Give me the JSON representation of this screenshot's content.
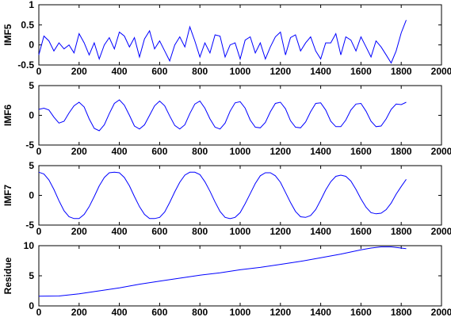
{
  "chart_data": [
    {
      "type": "line",
      "ylabel": "IMF5",
      "xlim": [
        0,
        2000
      ],
      "ylim": [
        -0.5,
        1
      ],
      "xticks": [
        0,
        200,
        400,
        600,
        800,
        1000,
        1200,
        1400,
        1600,
        1800,
        2000
      ],
      "yticks": [
        -0.5,
        0,
        0.5,
        1
      ],
      "yticklabels": [
        "-0.5",
        "0",
        "0.5",
        "1"
      ],
      "color": "#0000ff",
      "series": [
        {
          "x": [
            0,
            25,
            50,
            75,
            100,
            125,
            150,
            175,
            200,
            225,
            250,
            275,
            300,
            325,
            350,
            375,
            400,
            425,
            450,
            475,
            500,
            525,
            550,
            575,
            600,
            625,
            650,
            675,
            700,
            725,
            750,
            775,
            800,
            825,
            850,
            875,
            900,
            925,
            950,
            975,
            1000,
            1025,
            1050,
            1075,
            1100,
            1125,
            1150,
            1175,
            1200,
            1225,
            1250,
            1275,
            1300,
            1325,
            1350,
            1375,
            1400,
            1425,
            1450,
            1475,
            1500,
            1525,
            1550,
            1575,
            1600,
            1625,
            1650,
            1675,
            1700,
            1725,
            1750,
            1775,
            1800,
            1825
          ],
          "y": [
            -0.25,
            0.22,
            0.1,
            -0.15,
            0.05,
            -0.1,
            0.0,
            -0.2,
            0.28,
            0.05,
            -0.25,
            0.05,
            -0.35,
            0.0,
            0.18,
            -0.1,
            0.32,
            0.22,
            -0.05,
            0.18,
            -0.3,
            0.15,
            0.35,
            -0.1,
            0.1,
            -0.15,
            -0.4,
            0.0,
            0.2,
            -0.05,
            0.45,
            0.1,
            -0.3,
            0.05,
            -0.2,
            0.25,
            0.22,
            -0.3,
            0.0,
            0.05,
            -0.35,
            0.12,
            0.2,
            -0.2,
            0.05,
            -0.35,
            -0.05,
            0.2,
            0.32,
            -0.25,
            0.18,
            0.25,
            -0.15,
            0.05,
            0.2,
            -0.15,
            -0.35,
            0.05,
            0.05,
            0.28,
            -0.25,
            0.2,
            0.12,
            -0.15,
            0.2,
            -0.05,
            -0.3,
            0.1,
            -0.05,
            -0.25,
            -0.45,
            -0.15,
            0.3,
            0.62
          ]
        }
      ]
    },
    {
      "type": "line",
      "ylabel": "IMF6",
      "xlim": [
        0,
        2000
      ],
      "ylim": [
        -5,
        5
      ],
      "xticks": [
        0,
        200,
        400,
        600,
        800,
        1000,
        1200,
        1400,
        1600,
        1800,
        2000
      ],
      "yticks": [
        -5,
        0,
        5
      ],
      "yticklabels": [
        "-5",
        "0",
        "5"
      ],
      "color": "#0000ff",
      "series": [
        {
          "x": [
            0,
            25,
            50,
            75,
            100,
            125,
            150,
            175,
            200,
            225,
            250,
            275,
            300,
            325,
            350,
            375,
            400,
            425,
            450,
            475,
            500,
            525,
            550,
            575,
            600,
            625,
            650,
            675,
            700,
            725,
            750,
            775,
            800,
            825,
            850,
            875,
            900,
            925,
            950,
            975,
            1000,
            1025,
            1050,
            1075,
            1100,
            1125,
            1150,
            1175,
            1200,
            1225,
            1250,
            1275,
            1300,
            1325,
            1350,
            1375,
            1400,
            1425,
            1450,
            1475,
            1500,
            1525,
            1550,
            1575,
            1600,
            1625,
            1650,
            1675,
            1700,
            1725,
            1750,
            1775,
            1800,
            1825
          ],
          "y": [
            1.0,
            1.2,
            0.9,
            -0.3,
            -1.3,
            -1.0,
            0.4,
            1.6,
            2.2,
            1.4,
            -0.6,
            -2.2,
            -2.6,
            -1.6,
            0.3,
            2.0,
            2.6,
            1.7,
            0.0,
            -1.8,
            -2.3,
            -1.6,
            0.0,
            1.6,
            2.4,
            1.6,
            -0.1,
            -1.7,
            -2.3,
            -1.6,
            0.3,
            1.9,
            2.4,
            1.2,
            -0.6,
            -2.0,
            -2.3,
            -1.3,
            0.7,
            2.1,
            2.3,
            1.2,
            -0.8,
            -2.0,
            -2.1,
            -1.2,
            0.6,
            2.0,
            2.2,
            1.1,
            -0.9,
            -2.0,
            -2.1,
            -1.1,
            0.6,
            2.0,
            2.1,
            0.9,
            -1.0,
            -1.9,
            -1.9,
            -0.8,
            0.9,
            1.9,
            2.0,
            0.7,
            -1.0,
            -1.9,
            -1.8,
            -0.6,
            1.0,
            1.9,
            1.8,
            2.2
          ]
        }
      ]
    },
    {
      "type": "line",
      "ylabel": "IMF7",
      "xlim": [
        0,
        2000
      ],
      "ylim": [
        -5,
        5
      ],
      "xticks": [
        0,
        200,
        400,
        600,
        800,
        1000,
        1200,
        1400,
        1600,
        1800,
        2000
      ],
      "yticks": [
        -5,
        0,
        5
      ],
      "yticklabels": [
        "-5",
        "0",
        "5"
      ],
      "color": "#0000ff",
      "series": [
        {
          "x": [
            0,
            25,
            50,
            75,
            100,
            125,
            150,
            175,
            200,
            225,
            250,
            275,
            300,
            325,
            350,
            375,
            400,
            425,
            450,
            475,
            500,
            525,
            550,
            575,
            600,
            625,
            650,
            675,
            700,
            725,
            750,
            775,
            800,
            825,
            850,
            875,
            900,
            925,
            950,
            975,
            1000,
            1025,
            1050,
            1075,
            1100,
            1125,
            1150,
            1175,
            1200,
            1225,
            1250,
            1275,
            1300,
            1325,
            1350,
            1375,
            1400,
            1425,
            1450,
            1475,
            1500,
            1525,
            1550,
            1575,
            1600,
            1625,
            1650,
            1675,
            1700,
            1725,
            1750,
            1775,
            1800,
            1825
          ],
          "y": [
            3.9,
            3.6,
            2.6,
            1.0,
            -0.9,
            -2.6,
            -3.6,
            -3.9,
            -3.9,
            -3.2,
            -1.9,
            -0.2,
            1.6,
            3.0,
            3.8,
            3.9,
            3.8,
            3.0,
            1.6,
            -0.2,
            -1.9,
            -3.2,
            -3.9,
            -3.9,
            -3.7,
            -2.8,
            -1.2,
            0.6,
            2.2,
            3.4,
            3.9,
            3.9,
            3.5,
            2.3,
            0.7,
            -1.1,
            -2.7,
            -3.7,
            -3.9,
            -3.7,
            -2.9,
            -1.4,
            0.3,
            2.0,
            3.3,
            3.8,
            3.8,
            3.3,
            2.2,
            0.5,
            -1.2,
            -2.7,
            -3.6,
            -3.7,
            -3.4,
            -2.4,
            -0.8,
            0.9,
            2.3,
            3.2,
            3.4,
            3.2,
            2.4,
            1.0,
            -0.6,
            -2.0,
            -2.9,
            -3.1,
            -3.0,
            -2.4,
            -1.3,
            0.2,
            1.5,
            2.7
          ]
        }
      ]
    },
    {
      "type": "line",
      "ylabel": "Residue",
      "xlim": [
        0,
        2000
      ],
      "ylim": [
        0,
        10
      ],
      "xticks": [
        0,
        200,
        400,
        600,
        800,
        1000,
        1200,
        1400,
        1600,
        1800,
        2000
      ],
      "yticks": [
        0,
        5,
        10
      ],
      "yticklabels": [
        "0",
        "5",
        "10"
      ],
      "color": "#0000ff",
      "series": [
        {
          "x": [
            0,
            100,
            200,
            300,
            400,
            500,
            600,
            700,
            800,
            900,
            1000,
            1100,
            1200,
            1300,
            1400,
            1500,
            1600,
            1650,
            1700,
            1750,
            1800,
            1825
          ],
          "y": [
            1.6,
            1.65,
            2.0,
            2.5,
            3.0,
            3.6,
            4.1,
            4.6,
            5.1,
            5.5,
            6.0,
            6.4,
            6.9,
            7.4,
            8.0,
            8.6,
            9.3,
            9.6,
            9.8,
            9.8,
            9.6,
            9.5
          ]
        }
      ]
    }
  ]
}
